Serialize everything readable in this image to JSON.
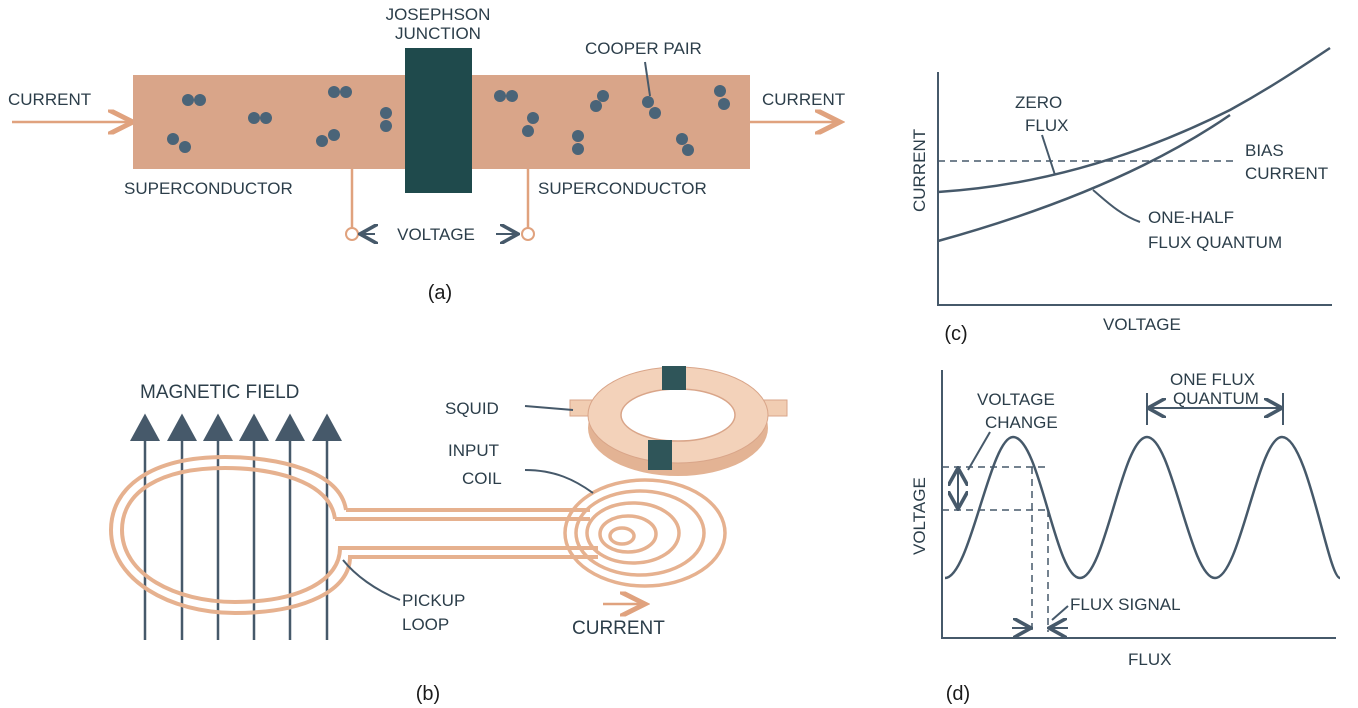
{
  "panel_a": {
    "caption": "(a)",
    "current_left": "CURRENT",
    "current_right": "CURRENT",
    "junction_line1": "JOSEPHSON",
    "junction_line2": "JUNCTION",
    "cooper_pair": "COOPER PAIR",
    "superconductor_left": "SUPERCONDUCTOR",
    "superconductor_right": "SUPERCONDUCTOR",
    "voltage": "VOLTAGE",
    "colors": {
      "superconductor": "#d9a589",
      "junction": "#1f4a4c",
      "pair": "#4a6478",
      "wire": "#e0a27e"
    }
  },
  "panel_b": {
    "caption": "(b)",
    "magnetic_field": "MAGNETIC FIELD",
    "squid": "SQUID",
    "input_line1": "INPUT",
    "input_line2": "COIL",
    "pickup_line1": "PICKUP",
    "pickup_line2": "LOOP",
    "current": "CURRENT"
  },
  "panel_c": {
    "caption": "(c)",
    "ylabel": "CURRENT",
    "xlabel": "VOLTAGE",
    "zero_line1": "ZERO",
    "zero_line2": "FLUX",
    "bias_line1": "BIAS",
    "bias_line2": "CURRENT",
    "half_line1": "ONE-HALF",
    "half_line2": "FLUX QUANTUM"
  },
  "panel_d": {
    "caption": "(d)",
    "ylabel": "VOLTAGE",
    "xlabel": "FLUX",
    "vchange_line1": "VOLTAGE",
    "vchange_line2": "CHANGE",
    "quantum_line1": "ONE FLUX",
    "quantum_line2": "QUANTUM",
    "flux_signal": "FLUX SIGNAL"
  }
}
